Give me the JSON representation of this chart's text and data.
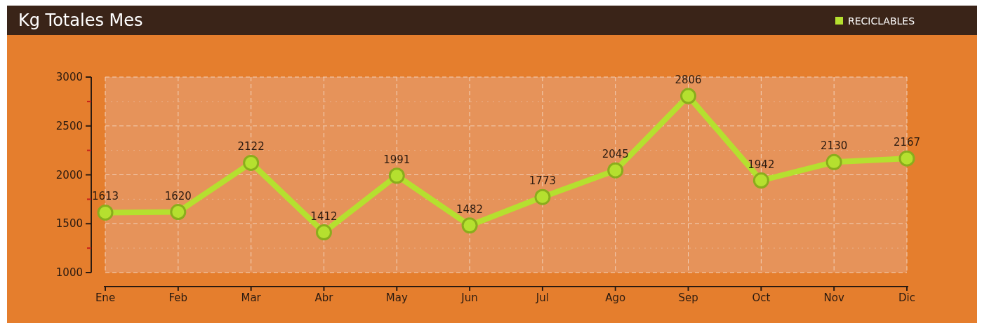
{
  "chart_data": {
    "type": "line",
    "title": "Kg Totales Mes",
    "categories": [
      "Ene",
      "Feb",
      "Mar",
      "Abr",
      "May",
      "Jun",
      "Jul",
      "Ago",
      "Sep",
      "Oct",
      "Nov",
      "Dic"
    ],
    "series": [
      {
        "name": "RECICLABLES",
        "color": "#b5e02f",
        "values": [
          1613,
          1620,
          2122,
          1412,
          1991,
          1482,
          1773,
          2045,
          2806,
          1942,
          2130,
          2167
        ]
      }
    ],
    "ylim": [
      1000,
      3000
    ],
    "yticks": [
      1000,
      {
        "value": 1250,
        "label": null
      },
      1500,
      {
        "value": 1750,
        "label": null
      },
      2000,
      {
        "value": 2250,
        "label": null
      },
      2500,
      {
        "value": 2750,
        "label": null
      },
      3000
    ],
    "grid": true,
    "legend": "top right",
    "marker": "circle",
    "line_style": "solid",
    "data_labels": true
  }
}
